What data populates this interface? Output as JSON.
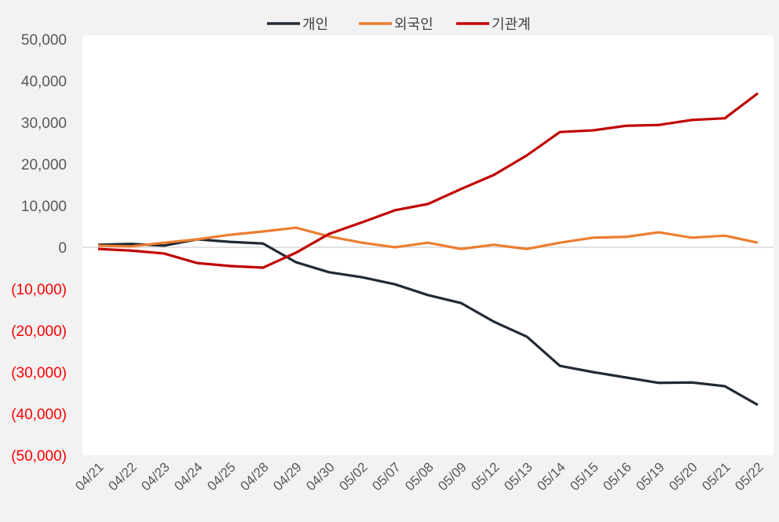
{
  "chart_data": {
    "type": "line",
    "title": "",
    "xlabel": "",
    "ylabel": "",
    "ylim": [
      -50000,
      50000
    ],
    "y_ticks": [
      50000,
      40000,
      30000,
      20000,
      10000,
      0,
      -10000,
      -20000,
      -30000,
      -40000,
      -50000
    ],
    "y_tick_labels": [
      "50,000",
      "40,000",
      "30,000",
      "20,000",
      "10,000",
      "0",
      "(10,000)",
      "(20,000)",
      "(30,000)",
      "(40,000)",
      "(50,000)"
    ],
    "categories": [
      "04/21",
      "04/22",
      "04/23",
      "04/24",
      "04/25",
      "04/28",
      "04/29",
      "04/30",
      "05/02",
      "05/07",
      "05/08",
      "05/09",
      "05/12",
      "05/13",
      "05/14",
      "05/15",
      "05/16",
      "05/19",
      "05/20",
      "05/21",
      "05/22"
    ],
    "legend_position": "top",
    "grid": false,
    "series": [
      {
        "name": "개인",
        "color": "#222a35",
        "values": [
          600,
          800,
          400,
          1900,
          1300,
          900,
          -3600,
          -6000,
          -7200,
          -8900,
          -11500,
          -13400,
          -17900,
          -21500,
          -28500,
          -30000,
          -31300,
          -32600,
          -32500,
          -33400,
          -37900
        ]
      },
      {
        "name": "외국인",
        "color": "#ed7d31",
        "values": [
          400,
          200,
          1100,
          1900,
          3000,
          3800,
          4700,
          2600,
          1100,
          0,
          1100,
          -400,
          600,
          -400,
          1100,
          2300,
          2500,
          3600,
          2300,
          2800,
          1100
        ]
      },
      {
        "name": "기관계",
        "color": "#c00000",
        "values": [
          -400,
          -800,
          -1500,
          -3800,
          -4500,
          -4900,
          -1300,
          3200,
          6000,
          8900,
          10400,
          14000,
          17400,
          22100,
          27700,
          28100,
          29200,
          29400,
          30600,
          31000,
          37000
        ]
      }
    ]
  }
}
